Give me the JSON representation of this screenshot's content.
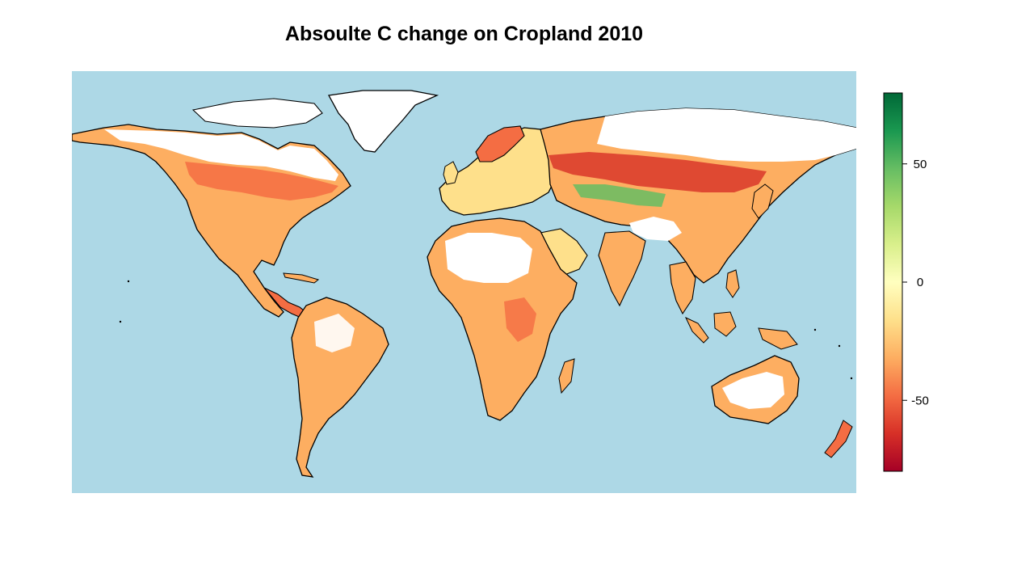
{
  "title": "Absoulte C change on Cropland 2010",
  "colors": {
    "ocean": "#add8e6",
    "no_data": "#ffffff",
    "coastline": "#000000",
    "scale": [
      "#a50026",
      "#d73027",
      "#f46d43",
      "#fdae61",
      "#fee08b",
      "#ffffbf",
      "#d9ef8b",
      "#a6d96a",
      "#66bd63",
      "#1a9850",
      "#006837"
    ]
  },
  "legend": {
    "min": -80,
    "max": 80,
    "ticks": [
      {
        "value": 50,
        "label": "50"
      },
      {
        "value": 0,
        "label": "0"
      },
      {
        "value": -50,
        "label": "-50"
      }
    ]
  }
}
